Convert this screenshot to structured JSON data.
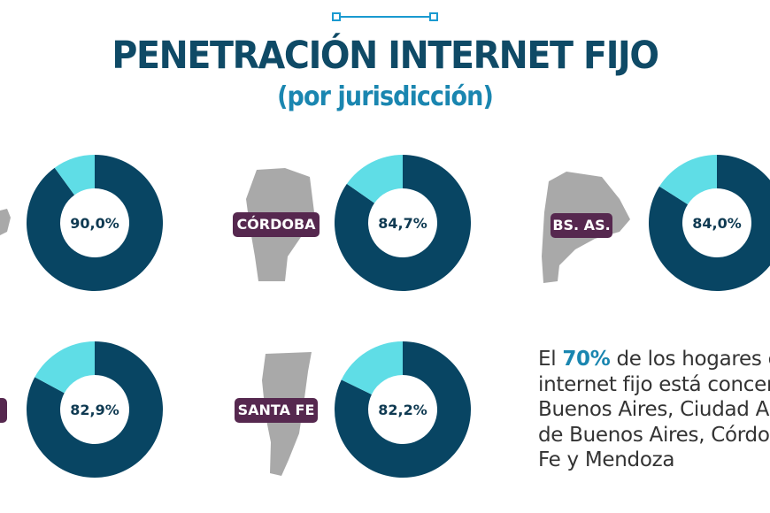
{
  "header": {
    "title": "PENETRACIÓN INTERNET FIJO",
    "subtitle": "(por jurisdicción)"
  },
  "chart_data": {
    "type": "pie",
    "colors": {
      "filled": "#084563",
      "remaining": "#5fdde6"
    },
    "donuts": [
      {
        "label": "",
        "value": 90.0,
        "display": "90,0%"
      },
      {
        "label": "CÓRDOBA",
        "value": 84.7,
        "display": "84,7%"
      },
      {
        "label": "BS. AS.",
        "value": 84.0,
        "display": "84,0%"
      },
      {
        "label": "",
        "value": 82.9,
        "display": "82,9%"
      },
      {
        "label": "SANTA FE",
        "value": 82.2,
        "display": "82,2%"
      }
    ]
  },
  "note": {
    "pre": "El ",
    "highlight": "70%",
    "lines": [
      " de los hogares c",
      "internet fijo está concen",
      "Buenos Aires, Ciudad A",
      "de Buenos Aires, Córdo",
      "Fe y Mendoza"
    ]
  }
}
